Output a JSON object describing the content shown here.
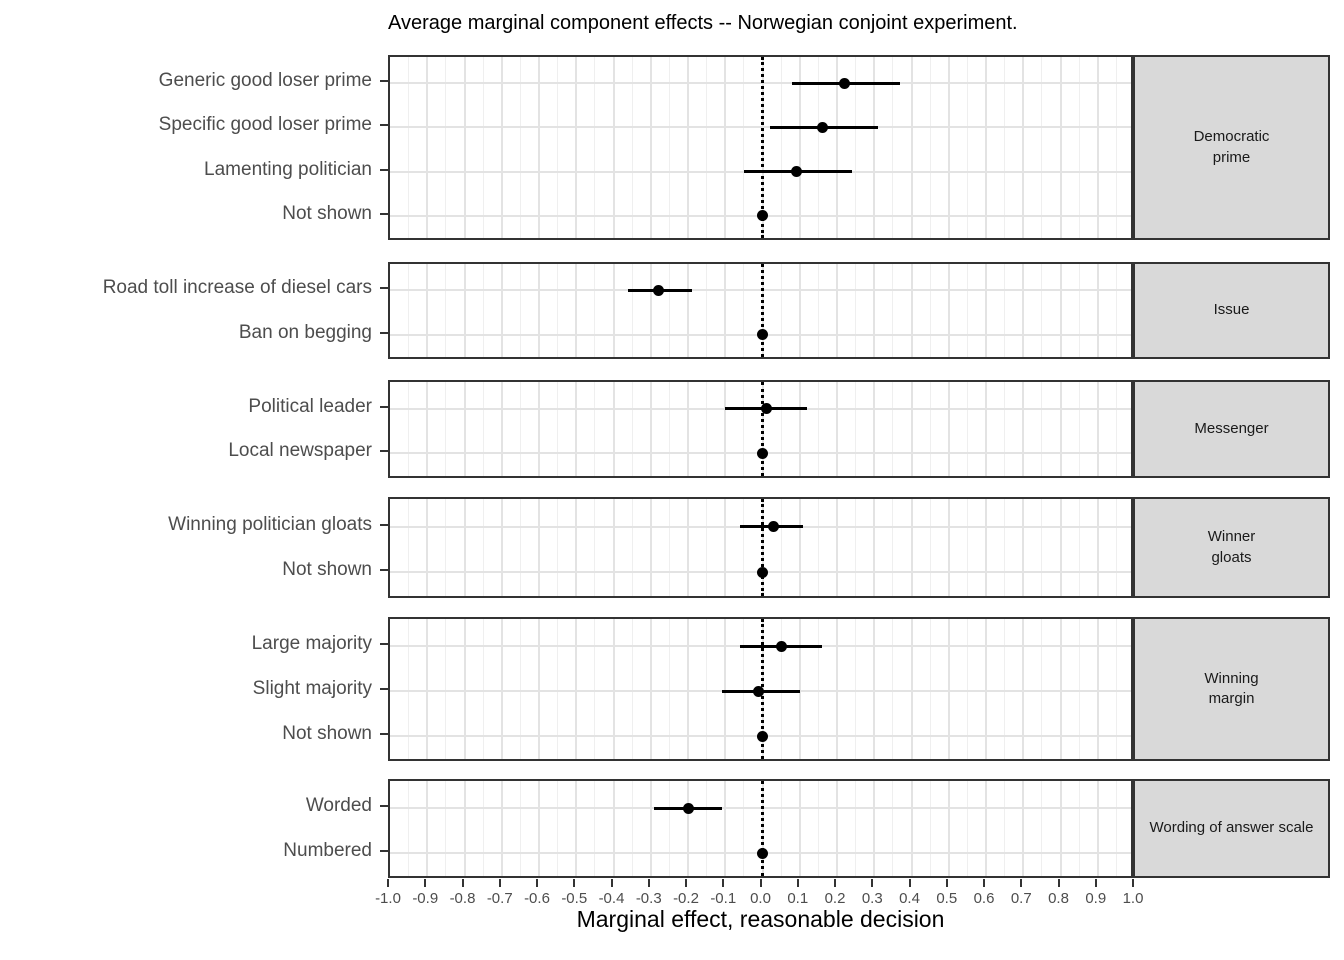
{
  "colors": {
    "strip_fill": "#D9D9D9",
    "panel_border": "#333333",
    "grid_major": "#E3E3E3",
    "grid_minor": "#EFEFEF",
    "point": "#000000",
    "axis_text": "#4D4D4D",
    "text": "#000000"
  },
  "chart_data": {
    "type": "scatter",
    "subtype": "dot-whisker coefficient plot, horizontal CIs, faceted rows",
    "title": "Average marginal component effects -- Norwegian conjoint experiment.",
    "xlabel": "Marginal effect, reasonable decision",
    "xlim": [
      -1.0,
      1.0
    ],
    "x_tick_step": 0.1,
    "x_minor_step": 0.05,
    "x_tick_labels": [
      "-1.0",
      "-0.9",
      "-0.8",
      "-0.7",
      "-0.6",
      "-0.5",
      "-0.4",
      "-0.3",
      "-0.2",
      "-0.1",
      "0.0",
      "0.1",
      "0.2",
      "0.3",
      "0.4",
      "0.5",
      "0.6",
      "0.7",
      "0.8",
      "0.9",
      "1.0"
    ],
    "zero_reference_line": 0.0,
    "grid": "on",
    "legend_position": "none",
    "facet_strip_position": "right",
    "panels": [
      {
        "facet": "Democratic\nprime",
        "rows": [
          {
            "label": "Generic good loser prime",
            "estimate": 0.22,
            "ci_low": 0.08,
            "ci_high": 0.37,
            "reference": false
          },
          {
            "label": "Specific good loser prime",
            "estimate": 0.16,
            "ci_low": 0.02,
            "ci_high": 0.31,
            "reference": false
          },
          {
            "label": "Lamenting politician",
            "estimate": 0.09,
            "ci_low": -0.05,
            "ci_high": 0.24,
            "reference": false
          },
          {
            "label": "Not shown",
            "estimate": 0.0,
            "ci_low": 0.0,
            "ci_high": 0.0,
            "reference": true
          }
        ]
      },
      {
        "facet": "Issue",
        "rows": [
          {
            "label": "Road toll increase of diesel cars",
            "estimate": -0.28,
            "ci_low": -0.36,
            "ci_high": -0.19,
            "reference": false
          },
          {
            "label": "Ban on begging",
            "estimate": 0.0,
            "ci_low": 0.0,
            "ci_high": 0.0,
            "reference": true
          }
        ]
      },
      {
        "facet": "Messenger",
        "rows": [
          {
            "label": "Political leader",
            "estimate": 0.01,
            "ci_low": -0.1,
            "ci_high": 0.12,
            "reference": false
          },
          {
            "label": "Local newspaper",
            "estimate": 0.0,
            "ci_low": 0.0,
            "ci_high": 0.0,
            "reference": true
          }
        ]
      },
      {
        "facet": "Winner\ngloats",
        "rows": [
          {
            "label": "Winning politician gloats",
            "estimate": 0.03,
            "ci_low": -0.06,
            "ci_high": 0.11,
            "reference": false
          },
          {
            "label": "Not shown",
            "estimate": 0.0,
            "ci_low": 0.0,
            "ci_high": 0.0,
            "reference": true
          }
        ]
      },
      {
        "facet": "Winning\nmargin",
        "rows": [
          {
            "label": "Large majority",
            "estimate": 0.05,
            "ci_low": -0.06,
            "ci_high": 0.16,
            "reference": false
          },
          {
            "label": "Slight majority",
            "estimate": -0.01,
            "ci_low": -0.11,
            "ci_high": 0.1,
            "reference": false
          },
          {
            "label": "Not shown",
            "estimate": 0.0,
            "ci_low": 0.0,
            "ci_high": 0.0,
            "reference": true
          }
        ]
      },
      {
        "facet": "Wording of answer scale",
        "rows": [
          {
            "label": "Worded",
            "estimate": -0.2,
            "ci_low": -0.29,
            "ci_high": -0.11,
            "reference": false
          },
          {
            "label": "Numbered",
            "estimate": 0.0,
            "ci_low": 0.0,
            "ci_high": 0.0,
            "reference": true
          }
        ]
      }
    ]
  }
}
